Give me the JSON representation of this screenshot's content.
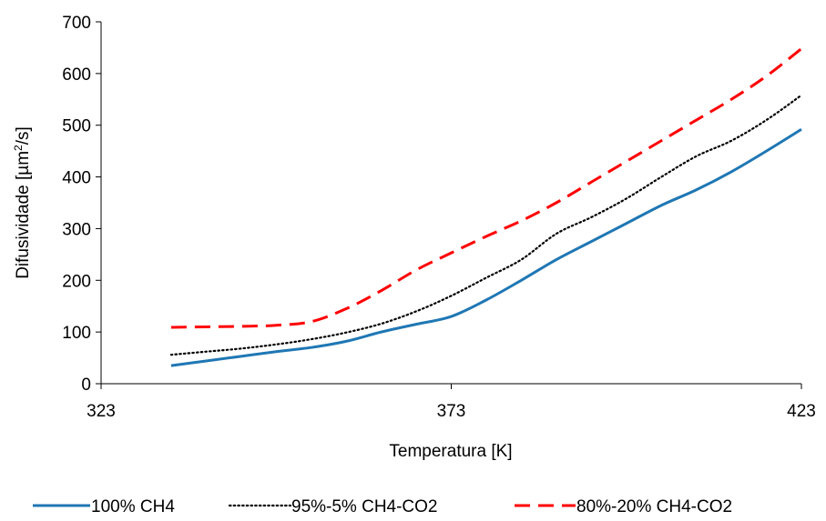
{
  "chart_data": {
    "type": "line",
    "xlabel": "Temperatura  [K]",
    "ylabel": "Difusividade  [µm²/s]",
    "ylabel_parts": {
      "pre": "Difusividade  [µm",
      "sup": "2",
      "post": "/s]"
    },
    "xlim": [
      323,
      423
    ],
    "ylim": [
      0,
      700
    ],
    "xticks": [
      323,
      373,
      423
    ],
    "yticks": [
      0,
      100,
      200,
      300,
      400,
      500,
      600,
      700
    ],
    "grid": false,
    "legend_position": "bottom",
    "series": [
      {
        "name": "100% CH4",
        "color": "#1f77b4",
        "style": "solid",
        "x": [
          333,
          338,
          343,
          348,
          353,
          358,
          363,
          368,
          373,
          378,
          383,
          388,
          393,
          398,
          403,
          408,
          413,
          418,
          423
        ],
        "y": [
          35,
          44,
          53,
          62,
          70,
          82,
          100,
          115,
          130,
          162,
          200,
          240,
          275,
          310,
          345,
          375,
          410,
          450,
          492
        ]
      },
      {
        "name": "95%-5% CH4-CO2",
        "color": "#000000",
        "style": "dotted",
        "x": [
          333,
          338,
          343,
          348,
          353,
          358,
          363,
          368,
          373,
          378,
          383,
          388,
          393,
          398,
          403,
          408,
          413,
          418,
          423
        ],
        "y": [
          56,
          62,
          68,
          76,
          86,
          99,
          116,
          140,
          170,
          205,
          240,
          290,
          322,
          358,
          400,
          440,
          470,
          510,
          558
        ]
      },
      {
        "name": "80%-20% CH4-CO2",
        "color": "#ff0000",
        "style": "dashed",
        "x": [
          333,
          338,
          343,
          348,
          353,
          358,
          363,
          368,
          373,
          378,
          383,
          388,
          393,
          398,
          403,
          408,
          413,
          418,
          423
        ],
        "y": [
          109,
          110,
          111,
          113,
          120,
          145,
          180,
          220,
          253,
          285,
          315,
          350,
          390,
          430,
          470,
          510,
          550,
          595,
          648
        ]
      }
    ]
  }
}
